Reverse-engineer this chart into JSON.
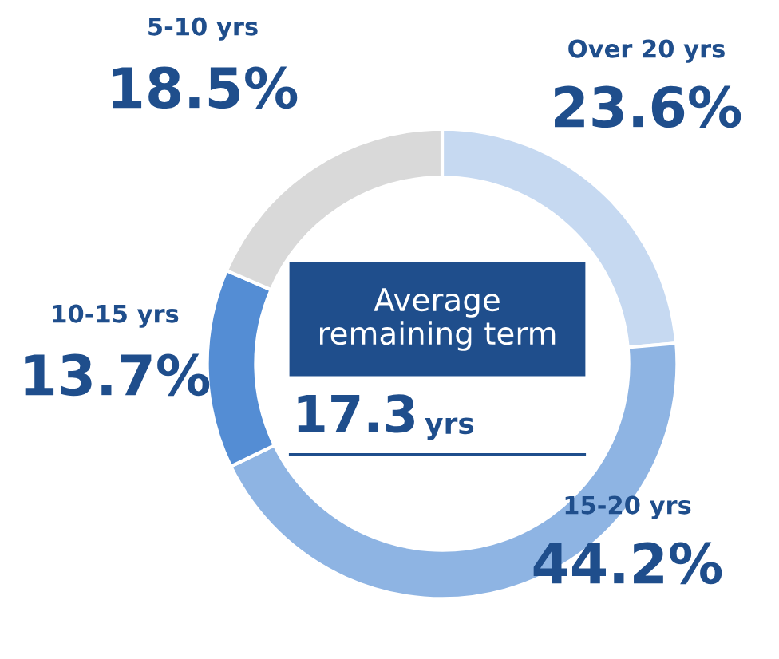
{
  "chart_data": {
    "type": "donut",
    "categories": [
      "Over 20 yrs",
      "15-20 yrs",
      "10-15 yrs",
      "5-10 yrs"
    ],
    "values": [
      23.6,
      44.2,
      13.7,
      18.5
    ],
    "colors": [
      "#c6d9f1",
      "#8eb4e3",
      "#548dd4",
      "#d9d9d9"
    ],
    "value_labels": [
      "23.6%",
      "44.2%",
      "13.7%",
      "18.5%"
    ],
    "annotations": [
      "Average remaining term",
      "17.3 yrs"
    ]
  }
}
